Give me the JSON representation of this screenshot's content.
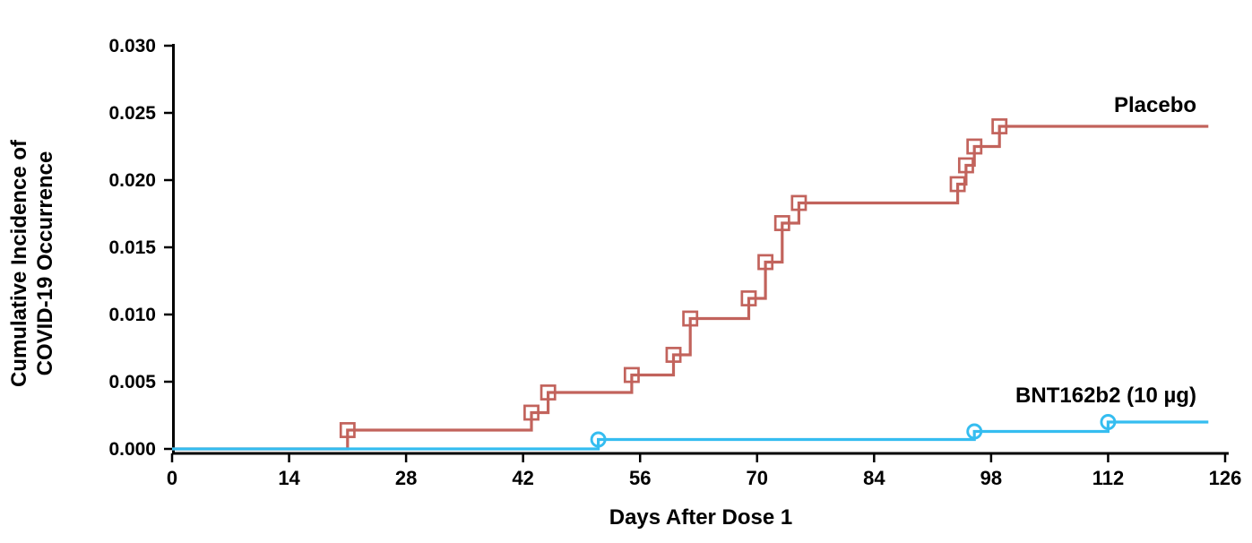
{
  "chart_data": {
    "type": "line",
    "subtype": "kaplan-meier-step",
    "title": "",
    "xlabel": "Days After Dose 1",
    "ylabel": "Cumulative Incidence of\nCOVID-19 Occurrence",
    "xlim": [
      0,
      126
    ],
    "ylim": [
      0,
      0.03
    ],
    "x_ticks": [
      0,
      14,
      28,
      42,
      56,
      70,
      84,
      98,
      112,
      126
    ],
    "y_ticks": [
      0.0,
      0.005,
      0.01,
      0.015,
      0.02,
      0.025,
      0.03
    ],
    "y_tick_decimals": 3,
    "grid": false,
    "legend_position": "inline-right",
    "axis_color": "#000000",
    "series": [
      {
        "name": "Placebo",
        "color": "#c2635c",
        "marker": "square",
        "start_day": 0,
        "end_day": 124,
        "points": [
          [
            21,
            0.0014
          ],
          [
            43,
            0.0027
          ],
          [
            45,
            0.0042
          ],
          [
            55,
            0.0055
          ],
          [
            60,
            0.007
          ],
          [
            62,
            0.0097
          ],
          [
            69,
            0.0112
          ],
          [
            71,
            0.0139
          ],
          [
            73,
            0.0168
          ],
          [
            75,
            0.0183
          ],
          [
            94,
            0.0197
          ],
          [
            95,
            0.0211
          ],
          [
            96,
            0.0225
          ],
          [
            99,
            0.024
          ]
        ]
      },
      {
        "name": "BNT162b2 (10 µg)",
        "color": "#35bdf0",
        "marker": "circle",
        "start_day": 0,
        "end_day": 124,
        "points": [
          [
            51,
            0.0007
          ],
          [
            96,
            0.0013
          ],
          [
            112,
            0.002
          ]
        ]
      }
    ]
  }
}
